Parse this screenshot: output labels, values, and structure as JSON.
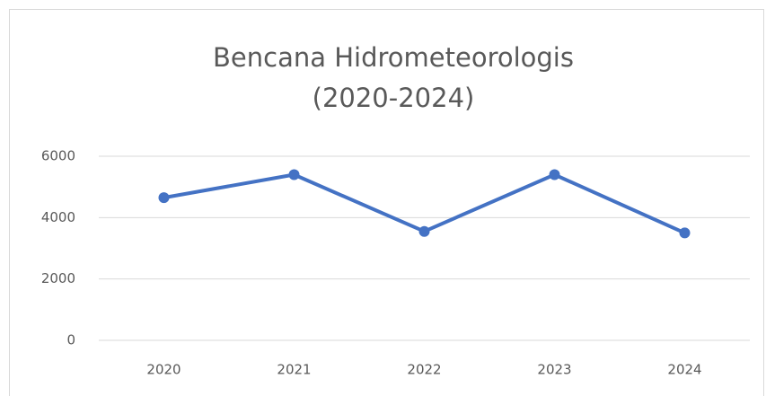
{
  "chart_data": {
    "type": "line",
    "title": [
      "Bencana Hidrometeorologis",
      "(2020-2024)"
    ],
    "categories": [
      "2020",
      "2021",
      "2022",
      "2023",
      "2024"
    ],
    "series": [
      {
        "name": "Bencana Hidrometeorologis",
        "color": "#4472c4",
        "values": [
          4650,
          5400,
          3550,
          5400,
          3500
        ]
      }
    ],
    "ylim": [
      0,
      6000
    ],
    "yticks": [
      0,
      2000,
      4000,
      6000
    ],
    "grid": true
  }
}
